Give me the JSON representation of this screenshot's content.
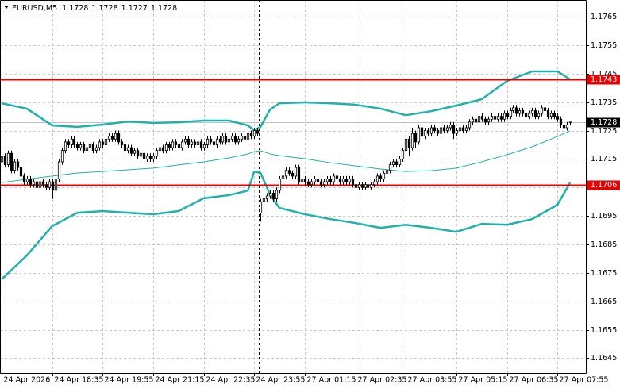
{
  "chart_data": {
    "type": "candlestick",
    "title": "EURUSD,M5",
    "ylim": [
      1.16398,
      1.17709
    ],
    "yticks": [
      1.1765,
      1.1755,
      1.1745,
      1.1735,
      1.1725,
      1.1715,
      1.1705,
      1.1695,
      1.1685,
      1.1675,
      1.1665,
      1.1655,
      1.1645
    ],
    "xlim": [
      -0.5,
      185
    ],
    "xticks": [
      {
        "value": 0,
        "label": "24 Apr 2026"
      },
      {
        "value": 16,
        "label": "24 Apr 18:35"
      },
      {
        "value": 32,
        "label": "24 Apr 19:55"
      },
      {
        "value": 48,
        "label": "24 Apr 21:15"
      },
      {
        "value": 64,
        "label": "24 Apr 22:35"
      },
      {
        "value": 80,
        "label": "24 Apr 23:55"
      },
      {
        "value": 96,
        "label": "27 Apr 01:15"
      },
      {
        "value": 112,
        "label": "27 Apr 02:35"
      },
      {
        "value": 128,
        "label": "27 Apr 03:55"
      },
      {
        "value": 144,
        "label": "27 Apr 05:15"
      },
      {
        "value": 160,
        "label": "27 Apr 06:35"
      },
      {
        "value": 176,
        "label": "27 Apr 07:55"
      }
    ],
    "grid": true,
    "period_separators": [
      82
    ],
    "up_color": "#ffffff",
    "down_color": "#000000",
    "ohlc": [
      [
        1.1714,
        1.1718,
        1.1712,
        1.1716
      ],
      [
        1.1716,
        1.1717,
        1.1712,
        1.1713
      ],
      [
        1.1713,
        1.1718,
        1.1712,
        1.1717
      ],
      [
        1.1717,
        1.1718,
        1.171,
        1.1711
      ],
      [
        1.1711,
        1.1715,
        1.171,
        1.1714
      ],
      [
        1.1714,
        1.1715,
        1.1711,
        1.1712
      ],
      [
        1.1712,
        1.1713,
        1.1708,
        1.1709
      ],
      [
        1.1709,
        1.171,
        1.1706,
        1.1707
      ],
      [
        1.1707,
        1.1709,
        1.1706,
        1.1708
      ],
      [
        1.1708,
        1.1709,
        1.1705,
        1.1706
      ],
      [
        1.1706,
        1.1708,
        1.1705,
        1.1707
      ],
      [
        1.1707,
        1.1708,
        1.1704,
        1.1705
      ],
      [
        1.1705,
        1.1708,
        1.1704,
        1.1707
      ],
      [
        1.1707,
        1.1708,
        1.1705,
        1.1706
      ],
      [
        1.1706,
        1.1707,
        1.1704,
        1.1705
      ],
      [
        1.1705,
        1.1708,
        1.1704,
        1.1707
      ],
      [
        1.1707,
        1.1708,
        1.1701,
        1.1704
      ],
      [
        1.1704,
        1.1709,
        1.1703,
        1.1708
      ],
      [
        1.1708,
        1.1715,
        1.1707,
        1.1714
      ],
      [
        1.1714,
        1.1719,
        1.1713,
        1.1718
      ],
      [
        1.1718,
        1.1722,
        1.1717,
        1.1721
      ],
      [
        1.1721,
        1.1722,
        1.1719,
        1.172
      ],
      [
        1.172,
        1.1723,
        1.1719,
        1.1722
      ],
      [
        1.1722,
        1.1723,
        1.1719,
        1.172
      ],
      [
        1.172,
        1.1721,
        1.1718,
        1.1719
      ],
      [
        1.1719,
        1.1721,
        1.1718,
        1.172
      ],
      [
        1.172,
        1.1721,
        1.1717,
        1.1718
      ],
      [
        1.1718,
        1.172,
        1.1717,
        1.1719
      ],
      [
        1.1719,
        1.1721,
        1.1718,
        1.172
      ],
      [
        1.172,
        1.1721,
        1.1717,
        1.1718
      ],
      [
        1.1718,
        1.172,
        1.1717,
        1.1719
      ],
      [
        1.1719,
        1.1722,
        1.1718,
        1.1721
      ],
      [
        1.1721,
        1.1722,
        1.1719,
        1.172
      ],
      [
        1.172,
        1.1723,
        1.1719,
        1.1722
      ],
      [
        1.1722,
        1.1724,
        1.1721,
        1.1723
      ],
      [
        1.1723,
        1.1724,
        1.1721,
        1.1722
      ],
      [
        1.1722,
        1.1725,
        1.1721,
        1.1724
      ],
      [
        1.1724,
        1.1725,
        1.172,
        1.1721
      ],
      [
        1.1721,
        1.1722,
        1.1719,
        1.172
      ],
      [
        1.172,
        1.1721,
        1.1717,
        1.1718
      ],
      [
        1.1718,
        1.172,
        1.1717,
        1.1719
      ],
      [
        1.1719,
        1.172,
        1.1716,
        1.1717
      ],
      [
        1.1717,
        1.1719,
        1.1716,
        1.1718
      ],
      [
        1.1718,
        1.1719,
        1.1715,
        1.1716
      ],
      [
        1.1716,
        1.1718,
        1.1715,
        1.1717
      ],
      [
        1.1717,
        1.1718,
        1.1714,
        1.1715
      ],
      [
        1.1715,
        1.1717,
        1.1714,
        1.1716
      ],
      [
        1.1716,
        1.1717,
        1.1714,
        1.1715
      ],
      [
        1.1715,
        1.1717,
        1.1714,
        1.1716
      ],
      [
        1.1716,
        1.1719,
        1.1715,
        1.1718
      ],
      [
        1.1718,
        1.172,
        1.1717,
        1.1719
      ],
      [
        1.1719,
        1.172,
        1.1717,
        1.1718
      ],
      [
        1.1718,
        1.1721,
        1.1717,
        1.172
      ],
      [
        1.172,
        1.1721,
        1.1718,
        1.1719
      ],
      [
        1.1719,
        1.1722,
        1.1718,
        1.1721
      ],
      [
        1.1721,
        1.1722,
        1.1719,
        1.172
      ],
      [
        1.172,
        1.1721,
        1.1718,
        1.1719
      ],
      [
        1.1719,
        1.1722,
        1.1718,
        1.1721
      ],
      [
        1.1721,
        1.1723,
        1.172,
        1.1722
      ],
      [
        1.1722,
        1.1723,
        1.1719,
        1.172
      ],
      [
        1.172,
        1.1722,
        1.1719,
        1.1721
      ],
      [
        1.1721,
        1.1722,
        1.1719,
        1.172
      ],
      [
        1.172,
        1.1722,
        1.1719,
        1.1721
      ],
      [
        1.1721,
        1.1722,
        1.1718,
        1.1719
      ],
      [
        1.1719,
        1.1721,
        1.1718,
        1.172
      ],
      [
        1.172,
        1.1723,
        1.1719,
        1.1722
      ],
      [
        1.1722,
        1.1723,
        1.172,
        1.1721
      ],
      [
        1.1721,
        1.1722,
        1.1719,
        1.172
      ],
      [
        1.172,
        1.1723,
        1.1719,
        1.1722
      ],
      [
        1.1722,
        1.1723,
        1.172,
        1.1721
      ],
      [
        1.1721,
        1.1724,
        1.172,
        1.1723
      ],
      [
        1.1723,
        1.1724,
        1.172,
        1.1721
      ],
      [
        1.1721,
        1.1723,
        1.172,
        1.1722
      ],
      [
        1.1722,
        1.1724,
        1.1721,
        1.1723
      ],
      [
        1.1723,
        1.1724,
        1.172,
        1.1721
      ],
      [
        1.1721,
        1.1723,
        1.172,
        1.1722
      ],
      [
        1.1722,
        1.1724,
        1.1721,
        1.1723
      ],
      [
        1.1723,
        1.1724,
        1.1721,
        1.1722
      ],
      [
        1.1722,
        1.1725,
        1.1721,
        1.1724
      ],
      [
        1.1724,
        1.1725,
        1.1722,
        1.1723
      ],
      [
        1.1723,
        1.1726,
        1.1722,
        1.1725
      ],
      [
        1.1725,
        1.1726,
        1.1723,
        1.1724
      ],
      [
        1.1696,
        1.1701,
        1.1693,
        1.17
      ],
      [
        1.17,
        1.1702,
        1.1699,
        1.1701
      ],
      [
        1.1701,
        1.1703,
        1.17,
        1.1702
      ],
      [
        1.1702,
        1.1704,
        1.1701,
        1.1703
      ],
      [
        1.1703,
        1.1704,
        1.17,
        1.1701
      ],
      [
        1.1701,
        1.1705,
        1.17,
        1.1704
      ],
      [
        1.1704,
        1.1709,
        1.1703,
        1.1708
      ],
      [
        1.1708,
        1.171,
        1.1707,
        1.1709
      ],
      [
        1.1709,
        1.1712,
        1.1708,
        1.1711
      ],
      [
        1.1711,
        1.1712,
        1.1709,
        1.171
      ],
      [
        1.171,
        1.1711,
        1.1708,
        1.1709
      ],
      [
        1.1709,
        1.1713,
        1.1708,
        1.1712
      ],
      [
        1.1712,
        1.1713,
        1.1706,
        1.1707
      ],
      [
        1.1707,
        1.1709,
        1.1706,
        1.1708
      ],
      [
        1.1708,
        1.1709,
        1.1706,
        1.1707
      ],
      [
        1.1707,
        1.1708,
        1.1705,
        1.1706
      ],
      [
        1.1706,
        1.1708,
        1.1705,
        1.1707
      ],
      [
        1.1707,
        1.1709,
        1.1706,
        1.1708
      ],
      [
        1.1708,
        1.1709,
        1.1706,
        1.1707
      ],
      [
        1.1707,
        1.1708,
        1.1705,
        1.1706
      ],
      [
        1.1706,
        1.1708,
        1.1705,
        1.1707
      ],
      [
        1.1707,
        1.1709,
        1.1706,
        1.1708
      ],
      [
        1.1708,
        1.1709,
        1.1706,
        1.1707
      ],
      [
        1.1707,
        1.171,
        1.1706,
        1.1709
      ],
      [
        1.1709,
        1.171,
        1.1707,
        1.1708
      ],
      [
        1.1708,
        1.1709,
        1.1706,
        1.1707
      ],
      [
        1.1707,
        1.1709,
        1.1706,
        1.1708
      ],
      [
        1.1708,
        1.1709,
        1.1706,
        1.1707
      ],
      [
        1.1707,
        1.1709,
        1.1706,
        1.1708
      ],
      [
        1.1708,
        1.1709,
        1.1705,
        1.1706
      ],
      [
        1.1706,
        1.1707,
        1.1704,
        1.1705
      ],
      [
        1.1705,
        1.1707,
        1.1704,
        1.1706
      ],
      [
        1.1706,
        1.1707,
        1.1704,
        1.1705
      ],
      [
        1.1705,
        1.1707,
        1.1704,
        1.1706
      ],
      [
        1.1706,
        1.1707,
        1.1704,
        1.1705
      ],
      [
        1.1705,
        1.1707,
        1.1704,
        1.1706
      ],
      [
        1.1706,
        1.1708,
        1.1705,
        1.1707
      ],
      [
        1.1707,
        1.171,
        1.1706,
        1.1709
      ],
      [
        1.1709,
        1.171,
        1.1707,
        1.1708
      ],
      [
        1.1708,
        1.1711,
        1.1707,
        1.171
      ],
      [
        1.171,
        1.1712,
        1.1709,
        1.1711
      ],
      [
        1.1711,
        1.1714,
        1.171,
        1.1713
      ],
      [
        1.1713,
        1.1715,
        1.1712,
        1.1714
      ],
      [
        1.1714,
        1.1715,
        1.1712,
        1.1713
      ],
      [
        1.1713,
        1.1716,
        1.1712,
        1.1715
      ],
      [
        1.1715,
        1.1719,
        1.1714,
        1.1718
      ],
      [
        1.1718,
        1.1725,
        1.1717,
        1.1722
      ],
      [
        1.1722,
        1.1723,
        1.1716,
        1.1719
      ],
      [
        1.1719,
        1.1726,
        1.1718,
        1.1724
      ],
      [
        1.1724,
        1.1725,
        1.1719,
        1.1721
      ],
      [
        1.1721,
        1.1727,
        1.172,
        1.1726
      ],
      [
        1.1726,
        1.1727,
        1.1722,
        1.1723
      ],
      [
        1.1723,
        1.1726,
        1.1722,
        1.1725
      ],
      [
        1.1725,
        1.1726,
        1.1723,
        1.1724
      ],
      [
        1.1724,
        1.1727,
        1.1723,
        1.1726
      ],
      [
        1.1726,
        1.1727,
        1.1724,
        1.1725
      ],
      [
        1.1725,
        1.1726,
        1.1723,
        1.1724
      ],
      [
        1.1724,
        1.1727,
        1.1723,
        1.1726
      ],
      [
        1.1726,
        1.1727,
        1.1724,
        1.1725
      ],
      [
        1.1725,
        1.1727,
        1.1724,
        1.1726
      ],
      [
        1.1726,
        1.1728,
        1.1725,
        1.1727
      ],
      [
        1.1727,
        1.1728,
        1.1722,
        1.1724
      ],
      [
        1.1724,
        1.1726,
        1.1723,
        1.1725
      ],
      [
        1.1725,
        1.1727,
        1.1724,
        1.1726
      ],
      [
        1.1726,
        1.1727,
        1.1724,
        1.1725
      ],
      [
        1.1725,
        1.1727,
        1.1724,
        1.1726
      ],
      [
        1.1726,
        1.1729,
        1.1725,
        1.1728
      ],
      [
        1.1728,
        1.173,
        1.1727,
        1.1729
      ],
      [
        1.1729,
        1.173,
        1.1727,
        1.1728
      ],
      [
        1.1728,
        1.1731,
        1.1727,
        1.173
      ],
      [
        1.173,
        1.1731,
        1.1728,
        1.1729
      ],
      [
        1.1729,
        1.173,
        1.1727,
        1.1728
      ],
      [
        1.1728,
        1.173,
        1.1727,
        1.1729
      ],
      [
        1.1729,
        1.1731,
        1.1728,
        1.173
      ],
      [
        1.173,
        1.1731,
        1.1728,
        1.1729
      ],
      [
        1.1729,
        1.1731,
        1.1728,
        1.173
      ],
      [
        1.173,
        1.1731,
        1.1728,
        1.1729
      ],
      [
        1.1729,
        1.1732,
        1.1728,
        1.1731
      ],
      [
        1.1731,
        1.1732,
        1.1729,
        1.173
      ],
      [
        1.173,
        1.1733,
        1.1729,
        1.1732
      ],
      [
        1.1732,
        1.1734,
        1.1731,
        1.1733
      ],
      [
        1.1733,
        1.1734,
        1.173,
        1.1731
      ],
      [
        1.1731,
        1.1733,
        1.173,
        1.1732
      ],
      [
        1.1732,
        1.1733,
        1.173,
        1.1731
      ],
      [
        1.1731,
        1.1732,
        1.1729,
        1.173
      ],
      [
        1.173,
        1.1732,
        1.1729,
        1.1731
      ],
      [
        1.1731,
        1.1733,
        1.173,
        1.1732
      ],
      [
        1.1732,
        1.1733,
        1.1729,
        1.173
      ],
      [
        1.173,
        1.1732,
        1.1729,
        1.1731
      ],
      [
        1.1731,
        1.1734,
        1.173,
        1.1733
      ],
      [
        1.1733,
        1.1734,
        1.1731,
        1.1732
      ],
      [
        1.1732,
        1.1733,
        1.1729,
        1.173
      ],
      [
        1.173,
        1.1732,
        1.1729,
        1.1731
      ],
      [
        1.1731,
        1.1732,
        1.1729,
        1.173
      ],
      [
        1.173,
        1.1731,
        1.1728,
        1.1729
      ],
      [
        1.1729,
        1.173,
        1.1726,
        1.1727
      ],
      [
        1.1727,
        1.1728,
        1.1725,
        1.1726
      ],
      [
        1.1726,
        1.1728,
        1.1725,
        1.1727
      ],
      [
        1.1728,
        1.1728,
        1.1727,
        1.1728
      ]
    ],
    "bands": {
      "color": "#20b2aa",
      "x": [
        0,
        8,
        16,
        24,
        32,
        40,
        48,
        56,
        64,
        72,
        78,
        80,
        82,
        85,
        88,
        96,
        104,
        112,
        120,
        128,
        136,
        144,
        152,
        160,
        168,
        176,
        180
      ],
      "upper": [
        1.17346,
        1.17327,
        1.17268,
        1.17263,
        1.17271,
        1.17282,
        1.17277,
        1.17279,
        1.17285,
        1.17285,
        1.17268,
        1.17251,
        1.17263,
        1.17324,
        1.17346,
        1.17349,
        1.17346,
        1.17341,
        1.17327,
        1.17304,
        1.17318,
        1.17338,
        1.1736,
        1.17424,
        1.17458,
        1.17458,
        1.1743
      ],
      "middle": [
        1.17067,
        1.17079,
        1.1709,
        1.17101,
        1.17106,
        1.17112,
        1.17118,
        1.17129,
        1.1714,
        1.17154,
        1.17168,
        1.17176,
        1.17179,
        1.17168,
        1.17162,
        1.17151,
        1.17137,
        1.17126,
        1.17115,
        1.17106,
        1.17109,
        1.17118,
        1.1714,
        1.17165,
        1.17193,
        1.17229,
        1.17249
      ],
      "lower": [
        1.16727,
        1.16811,
        1.16914,
        1.16961,
        1.16967,
        1.16961,
        1.16956,
        1.16967,
        1.17012,
        1.17023,
        1.17039,
        1.17106,
        1.17101,
        1.17025,
        1.16978,
        1.16956,
        1.16939,
        1.16925,
        1.16908,
        1.16919,
        1.16908,
        1.16894,
        1.16922,
        1.16919,
        1.16939,
        1.16989,
        1.17067
      ]
    },
    "levels": [
      {
        "value": 1.1743,
        "color": "#e60000"
      },
      {
        "value": 1.1706,
        "color": "#e60000"
      }
    ]
  }
}
